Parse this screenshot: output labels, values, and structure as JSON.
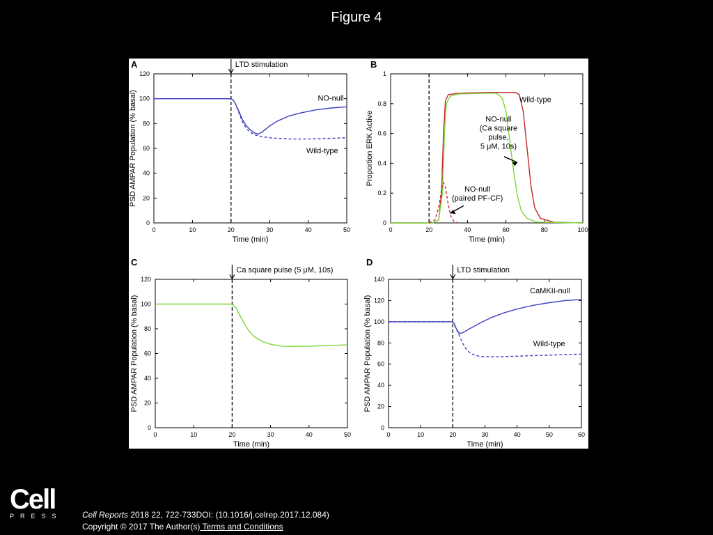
{
  "slide": {
    "title": "Figure 4"
  },
  "footer": {
    "logo_main": "Cell",
    "logo_sub": "PRESS",
    "journal": "Cell Reports",
    "citation_rest": " 2018 22, 722-733DOI: (10.1016/j.celrep.2017.12.084)",
    "copyright": "Copyright © 2017 The Author(s)",
    "terms_link": " Terms and Conditions"
  },
  "colors": {
    "blue": "#3d3dbf",
    "red": "#c0282a",
    "green": "#7ed63a",
    "axis": "#000000"
  },
  "chart_data": [
    {
      "panel": "A",
      "type": "line",
      "ylabel": "PSD AMPAR Population (% basal)",
      "xlabel": "Time (min)",
      "xlim": [
        0,
        50
      ],
      "ylim": [
        0,
        120
      ],
      "xticks": [
        0,
        10,
        20,
        30,
        40,
        50
      ],
      "yticks": [
        0,
        20,
        40,
        60,
        80,
        100,
        120
      ],
      "vline": {
        "x": 20,
        "label": "LTD stimulation"
      },
      "series": [
        {
          "name": "NO-null",
          "color": "blue",
          "dash": false,
          "points": [
            [
              0,
              100
            ],
            [
              20,
              100
            ],
            [
              20.5,
              99
            ],
            [
              21,
              97
            ],
            [
              22,
              90
            ],
            [
              23,
              83
            ],
            [
              24,
              78
            ],
            [
              25,
              75
            ],
            [
              26,
              72.5
            ],
            [
              27,
              71.5
            ],
            [
              28,
              73
            ],
            [
              30,
              78
            ],
            [
              32,
              82
            ],
            [
              35,
              86
            ],
            [
              38,
              88.5
            ],
            [
              42,
              91
            ],
            [
              46,
              92.5
            ],
            [
              50,
              93.5
            ]
          ]
        },
        {
          "name": "Wild-type",
          "color": "blue",
          "dash": true,
          "points": [
            [
              0,
              100
            ],
            [
              20,
              100
            ],
            [
              20.5,
              99
            ],
            [
              21,
              97
            ],
            [
              22,
              89
            ],
            [
              23,
              81
            ],
            [
              24,
              76
            ],
            [
              25,
              73
            ],
            [
              26,
              71
            ],
            [
              28,
              69.5
            ],
            [
              30,
              68.5
            ],
            [
              35,
              67.5
            ],
            [
              40,
              67.5
            ],
            [
              45,
              68
            ],
            [
              50,
              68.5
            ]
          ]
        }
      ]
    },
    {
      "panel": "B",
      "type": "line",
      "ylabel": "Proportion ERK Active",
      "xlabel": "Time (min)",
      "xlim": [
        0,
        100
      ],
      "ylim": [
        0,
        1
      ],
      "xticks": [
        0,
        20,
        40,
        60,
        80,
        100
      ],
      "yticks": [
        0,
        0.2,
        0.4,
        0.6,
        0.8,
        1
      ],
      "yticklabels": [
        "0",
        "0.2",
        "0.4",
        "0.6",
        "0.8",
        "1"
      ],
      "vline": {
        "x": 20,
        "label": ""
      },
      "series": [
        {
          "name": "Wild-type",
          "color": "red",
          "dash": false,
          "points": [
            [
              0,
              0
            ],
            [
              22,
              0
            ],
            [
              25,
              0.02
            ],
            [
              26.5,
              0.2
            ],
            [
              27.5,
              0.6
            ],
            [
              28.5,
              0.82
            ],
            [
              30,
              0.86
            ],
            [
              35,
              0.87
            ],
            [
              50,
              0.875
            ],
            [
              65,
              0.875
            ],
            [
              67,
              0.86
            ],
            [
              69,
              0.75
            ],
            [
              71,
              0.5
            ],
            [
              73,
              0.25
            ],
            [
              75,
              0.1
            ],
            [
              78,
              0.03
            ],
            [
              85,
              0.005
            ],
            [
              100,
              0
            ]
          ]
        },
        {
          "name": "NO-null (Ca square pulse, 5 μM, 10s)",
          "color": "green",
          "dash": false,
          "points": [
            [
              0,
              0
            ],
            [
              22,
              0
            ],
            [
              25,
              0.02
            ],
            [
              27,
              0.2
            ],
            [
              28,
              0.6
            ],
            [
              29,
              0.8
            ],
            [
              31,
              0.85
            ],
            [
              35,
              0.865
            ],
            [
              50,
              0.87
            ],
            [
              55,
              0.87
            ],
            [
              58,
              0.84
            ],
            [
              60,
              0.75
            ],
            [
              62,
              0.55
            ],
            [
              64,
              0.35
            ],
            [
              66,
              0.18
            ],
            [
              68,
              0.08
            ],
            [
              71,
              0.03
            ],
            [
              76,
              0.005
            ],
            [
              100,
              0
            ]
          ]
        },
        {
          "name": "NO-null (paired PF-CF)",
          "color": "red",
          "dash": true,
          "points": [
            [
              20,
              0
            ],
            [
              23,
              0.02
            ],
            [
              25,
              0.1
            ],
            [
              26.5,
              0.22
            ],
            [
              27.5,
              0.27
            ],
            [
              28.5,
              0.24
            ],
            [
              29.5,
              0.16
            ],
            [
              30.5,
              0.09
            ],
            [
              31.5,
              0.04
            ],
            [
              33,
              0.01
            ],
            [
              35,
              0
            ]
          ]
        }
      ],
      "annotations": [
        {
          "lines": [
            "Wild-type"
          ],
          "x": 67,
          "y": 0.81
        },
        {
          "lines": [
            "NO-null",
            "(Ca square",
            "pulse,",
            "5 μM, 10s)"
          ],
          "x": 46,
          "y": 0.68
        },
        {
          "lines": [
            "NO-null",
            "(paired PF-CF)"
          ],
          "x": 35,
          "y": 0.21
        }
      ]
    },
    {
      "panel": "C",
      "type": "line",
      "ylabel": "PSD AMPAR Population (% basal)",
      "xlabel": "Time (min)",
      "xlim": [
        0,
        50
      ],
      "ylim": [
        0,
        120
      ],
      "xticks": [
        0,
        10,
        20,
        30,
        40,
        50
      ],
      "yticks": [
        0,
        20,
        40,
        60,
        80,
        100,
        120
      ],
      "vline": {
        "x": 20,
        "label": "Ca square pulse (5 μM, 10s)"
      },
      "series": [
        {
          "name": "Ca square pulse",
          "color": "green",
          "dash": false,
          "points": [
            [
              0,
              100
            ],
            [
              20,
              100
            ],
            [
              21,
              97
            ],
            [
              22,
              91
            ],
            [
              23,
              85
            ],
            [
              24,
              80
            ],
            [
              25,
              76
            ],
            [
              26,
              73
            ],
            [
              28,
              69.5
            ],
            [
              30,
              67.5
            ],
            [
              33,
              66
            ],
            [
              36,
              65.8
            ],
            [
              40,
              66
            ],
            [
              45,
              66.5
            ],
            [
              50,
              67
            ]
          ]
        }
      ]
    },
    {
      "panel": "D",
      "type": "line",
      "ylabel": "PSD AMPAR Population (% basal)",
      "xlabel": "Time (min)",
      "xlim": [
        0,
        60
      ],
      "ylim": [
        0,
        140
      ],
      "xticks": [
        0,
        10,
        20,
        30,
        40,
        50,
        60
      ],
      "yticks": [
        0,
        20,
        40,
        60,
        80,
        100,
        120,
        140
      ],
      "vline": {
        "x": 20,
        "label": "LTD stimulation"
      },
      "series": [
        {
          "name": "CaMKII-null",
          "color": "blue",
          "dash": false,
          "points": [
            [
              0,
              100
            ],
            [
              20,
              100
            ],
            [
              20.5,
              98
            ],
            [
              21,
              94
            ],
            [
              22,
              89
            ],
            [
              23,
              89.5
            ],
            [
              25,
              93
            ],
            [
              28,
              98
            ],
            [
              32,
              104
            ],
            [
              36,
              108.5
            ],
            [
              40,
              112
            ],
            [
              45,
              115.5
            ],
            [
              50,
              118
            ],
            [
              55,
              120
            ],
            [
              60,
              121
            ]
          ]
        },
        {
          "name": "Wild-type",
          "color": "blue",
          "dash": true,
          "points": [
            [
              0,
              100
            ],
            [
              20,
              100
            ],
            [
              21,
              94
            ],
            [
              22,
              87
            ],
            [
              23,
              80
            ],
            [
              24,
              75
            ],
            [
              25,
              71.5
            ],
            [
              26,
              69.5
            ],
            [
              28,
              67.5
            ],
            [
              30,
              67
            ],
            [
              35,
              67
            ],
            [
              40,
              67.5
            ],
            [
              45,
              68
            ],
            [
              50,
              68.5
            ],
            [
              55,
              69
            ],
            [
              60,
              69.5
            ]
          ]
        }
      ]
    }
  ]
}
